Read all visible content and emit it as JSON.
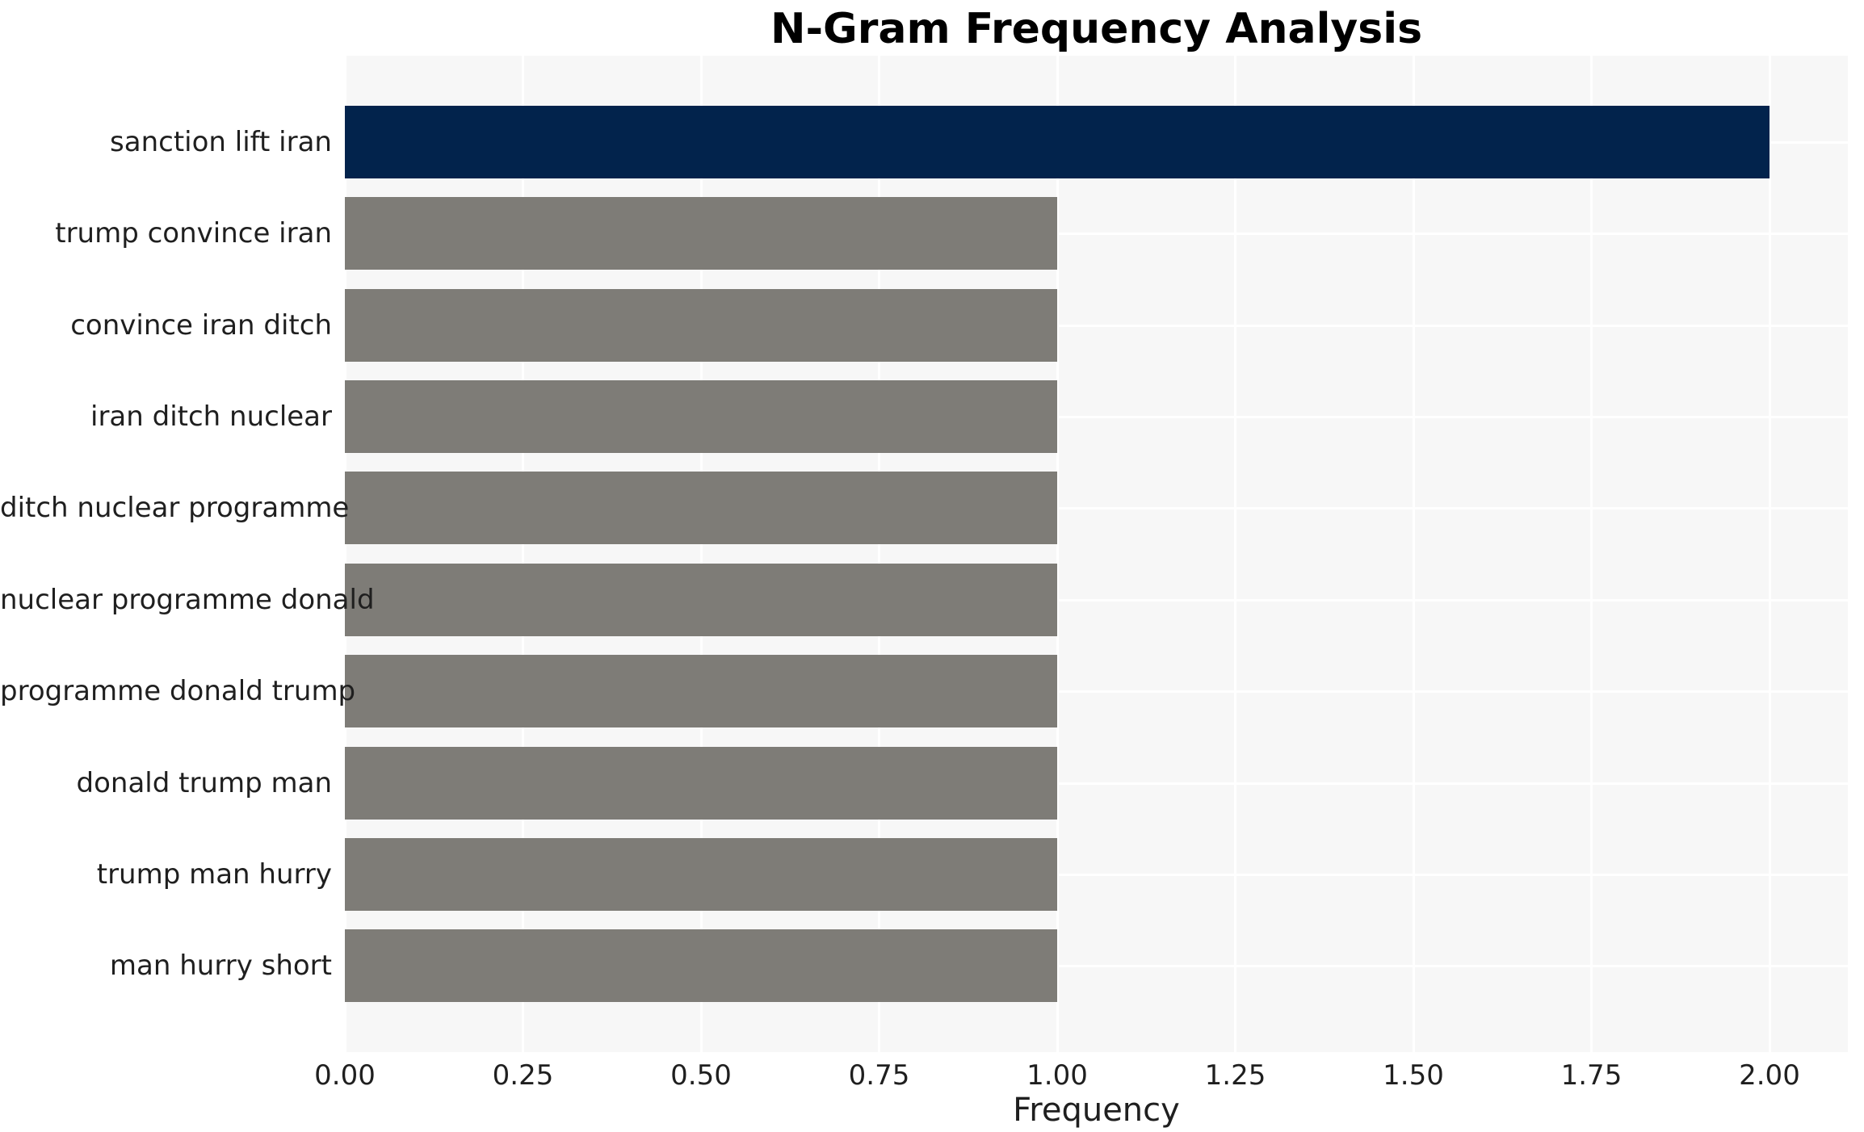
{
  "chart_data": {
    "type": "bar",
    "orientation": "horizontal",
    "title": "N-Gram Frequency Analysis",
    "xlabel": "Frequency",
    "ylabel": "",
    "categories": [
      "sanction lift iran",
      "trump convince iran",
      "convince iran ditch",
      "iran ditch nuclear",
      "ditch nuclear programme",
      "nuclear programme donald",
      "programme donald trump",
      "donald trump man",
      "trump man hurry",
      "man hurry short"
    ],
    "values": [
      2,
      1,
      1,
      1,
      1,
      1,
      1,
      1,
      1,
      1
    ],
    "bar_colors": [
      "#02234c",
      "#7e7c77",
      "#7e7c77",
      "#7e7c77",
      "#7e7c77",
      "#7e7c77",
      "#7e7c77",
      "#7e7c77",
      "#7e7c77",
      "#7e7c77"
    ],
    "xlim": [
      0,
      2.11
    ],
    "xticks": [
      {
        "value": 0.0,
        "label": "0.00"
      },
      {
        "value": 0.25,
        "label": "0.25"
      },
      {
        "value": 0.5,
        "label": "0.50"
      },
      {
        "value": 0.75,
        "label": "0.75"
      },
      {
        "value": 1.0,
        "label": "1.00"
      },
      {
        "value": 1.25,
        "label": "1.25"
      },
      {
        "value": 1.5,
        "label": "1.50"
      },
      {
        "value": 1.75,
        "label": "1.75"
      },
      {
        "value": 2.0,
        "label": "2.00"
      }
    ],
    "grid": true,
    "legend_position": "none",
    "colors": {
      "plot_background": "#f7f7f7",
      "grid_color": "#ffffff",
      "text_color": "#1f1f1f",
      "highlight_bar": "#02234c",
      "default_bar": "#7e7c77"
    }
  }
}
